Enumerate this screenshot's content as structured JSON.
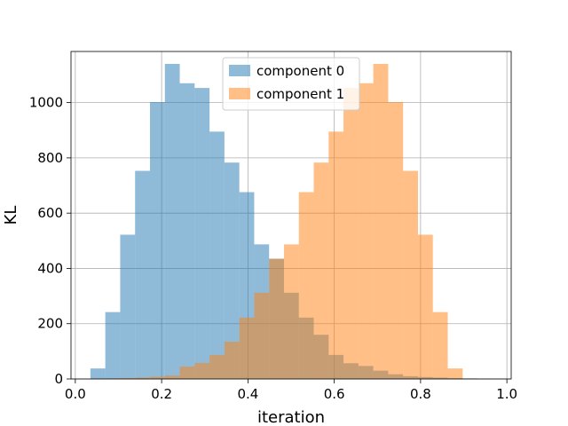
{
  "chart_data": {
    "type": "bar",
    "subtype": "histogram",
    "xlabel": "iteration",
    "ylabel": "KL",
    "xlim": [
      -0.01,
      1.01
    ],
    "ylim": [
      0,
      1185
    ],
    "xticks": [
      0.0,
      0.2,
      0.4,
      0.6,
      0.8,
      1.0
    ],
    "xtick_labels": [
      "0.0",
      "0.2",
      "0.4",
      "0.6",
      "0.8",
      "1.0"
    ],
    "yticks": [
      0,
      200,
      400,
      600,
      800,
      1000
    ],
    "ytick_labels": [
      "0",
      "200",
      "400",
      "600",
      "800",
      "1000"
    ],
    "grid": true,
    "legend": {
      "placement": "top-center"
    },
    "bin_edges": [
      0.035,
      0.0695,
      0.104,
      0.1385,
      0.173,
      0.2075,
      0.242,
      0.2765,
      0.311,
      0.3455,
      0.38,
      0.4145,
      0.449,
      0.4835,
      0.518,
      0.5525,
      0.587,
      0.6215,
      0.656,
      0.6905,
      0.725,
      0.7595,
      0.794,
      0.8285,
      0.863,
      0.8975,
      0.932,
      0.9665
    ],
    "series": [
      {
        "name": "component 0",
        "color": "#1f77b4",
        "opacity": 0.5,
        "bin_edges": [
          0.035,
          0.0695,
          0.104,
          0.1385,
          0.173,
          0.2075,
          0.242,
          0.2765,
          0.311,
          0.3455,
          0.38,
          0.4145,
          0.449,
          0.4835,
          0.518,
          0.5525,
          0.587,
          0.6215,
          0.656,
          0.6905,
          0.725,
          0.7595,
          0.794,
          0.8285,
          0.863,
          0.8975,
          0.932,
          0.9665
        ],
        "values": [
          38,
          242,
          522,
          753,
          1002,
          1140,
          1070,
          1053,
          895,
          783,
          676,
          487,
          435,
          312,
          222,
          160,
          87,
          57,
          47,
          30,
          17,
          10,
          7,
          5,
          3,
          2,
          1
        ]
      },
      {
        "name": "component 1",
        "color": "#ff7f0e",
        "opacity": 0.5,
        "bin_edges": [
          0.035,
          0.0695,
          0.104,
          0.1385,
          0.173,
          0.2075,
          0.242,
          0.2765,
          0.311,
          0.3455,
          0.38,
          0.4145,
          0.449,
          0.4835,
          0.518,
          0.5525,
          0.587,
          0.6215,
          0.656,
          0.6905,
          0.725,
          0.7595,
          0.794,
          0.8285,
          0.863,
          0.8975,
          0.932,
          0.9665
        ],
        "values": [
          1,
          2,
          3,
          5,
          8,
          12,
          45,
          58,
          87,
          135,
          222,
          312,
          435,
          487,
          676,
          783,
          895,
          1053,
          1070,
          1140,
          1002,
          753,
          522,
          242,
          38,
          0,
          0
        ]
      }
    ]
  }
}
